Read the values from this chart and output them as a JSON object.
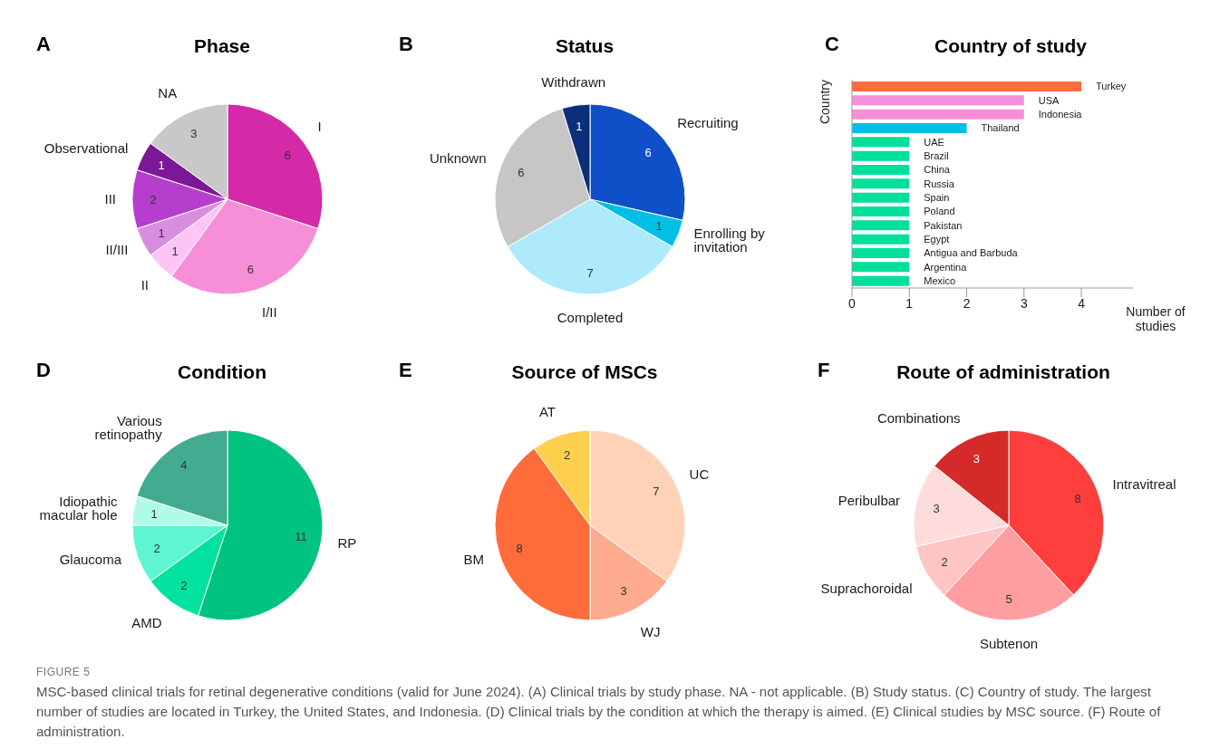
{
  "chart_data": [
    {
      "type": "pie",
      "title": "Phase",
      "annotations": [
        "A"
      ],
      "data_labels": true,
      "categories": [
        "I",
        "I/II",
        "II",
        "II/III",
        "III",
        "Observational",
        "NA"
      ],
      "values": [
        6,
        6,
        1,
        1,
        2,
        1,
        3
      ],
      "colors": [
        "#d42aa8",
        "#f78fd8",
        "#fdc4f6",
        "#d88ede",
        "#b53fcc",
        "#7c1797",
        "#c8c8c8"
      ]
    },
    {
      "type": "pie",
      "title": "Status",
      "annotations": [
        "B"
      ],
      "data_labels": true,
      "categories": [
        "Recruiting",
        "Enrolling by invitation",
        "Completed",
        "Unknown",
        "Withdrawn"
      ],
      "values": [
        6,
        1,
        7,
        6,
        1
      ],
      "colors": [
        "#0f4fc8",
        "#00bfe6",
        "#aeeafa",
        "#c6c6c6",
        "#0c2f7a"
      ]
    },
    {
      "type": "bar",
      "orientation": "horizontal",
      "title": "Country of study",
      "annotations": [
        "C"
      ],
      "xlabel": "Number of studies",
      "ylabel": "Country",
      "tick_labels": "x",
      "categories": [
        "Turkey",
        "USA",
        "Indonesia",
        "Thailand",
        "UAE",
        "Brazil",
        "China",
        "Russia",
        "Spain",
        "Poland",
        "Pakistan",
        "Egypt",
        "Antigua and Barbuda",
        "Argentina",
        "Mexico"
      ],
      "values": [
        4,
        3,
        3,
        2,
        1,
        1,
        1,
        1,
        1,
        1,
        1,
        1,
        1,
        1,
        1
      ],
      "colors": [
        "#ff6c3c",
        "#f78fd8",
        "#f78fd8",
        "#00bfe6",
        "#00e09a",
        "#00e09a",
        "#00e09a",
        "#00e09a",
        "#00e09a",
        "#00e09a",
        "#00e09a",
        "#00e09a",
        "#00e09a",
        "#00e09a",
        "#00e09a"
      ],
      "xlim": [
        0,
        4.9
      ],
      "xticks": [
        0,
        1,
        2,
        3,
        4
      ]
    },
    {
      "type": "pie",
      "title": "Condition",
      "annotations": [
        "D"
      ],
      "data_labels": true,
      "categories": [
        "RP",
        "AMD",
        "Glaucoma",
        "Idiopathic macular hole",
        "Various retinopathy"
      ],
      "values": [
        11,
        2,
        2,
        1,
        4
      ],
      "colors": [
        "#00c382",
        "#00e29e",
        "#5ef5d2",
        "#b0fbe6",
        "#43ab90"
      ]
    },
    {
      "type": "pie",
      "title": "Source of MSCs",
      "annotations": [
        "E"
      ],
      "data_labels": true,
      "categories": [
        "UC",
        "WJ",
        "BM",
        "AT"
      ],
      "values": [
        7,
        3,
        8,
        2
      ],
      "colors": [
        "#ffd2b8",
        "#ffab90",
        "#ff6c3c",
        "#ffd04e"
      ]
    },
    {
      "type": "pie",
      "title": "Route of administration",
      "data_labels": true,
      "annotations": [
        "F",
        "FIGURE 5",
        "MSC-based clinical trials for retinal degenerative conditions (valid for June 2024). (A) Clinical trials by study phase. NA - not applicable. (B) Study status. (C) Country of study. The largest number of studies are located in Turkey, the United States, and Indonesia. (D) Clinical trials by the condition at which the therapy is aimed. (E) Clinical studies by MSC source. (F) Route of administration."
      ],
      "categories": [
        "Intravitreal",
        "Subtenon",
        "Suprachoroidal",
        "Peribulbar",
        "Combinations"
      ],
      "values": [
        8,
        5,
        2,
        3,
        3
      ],
      "colors": [
        "#ff3e3e",
        "#ff9ea0",
        "#ffc4c4",
        "#ffdcdc",
        "#d42a2a"
      ]
    }
  ]
}
